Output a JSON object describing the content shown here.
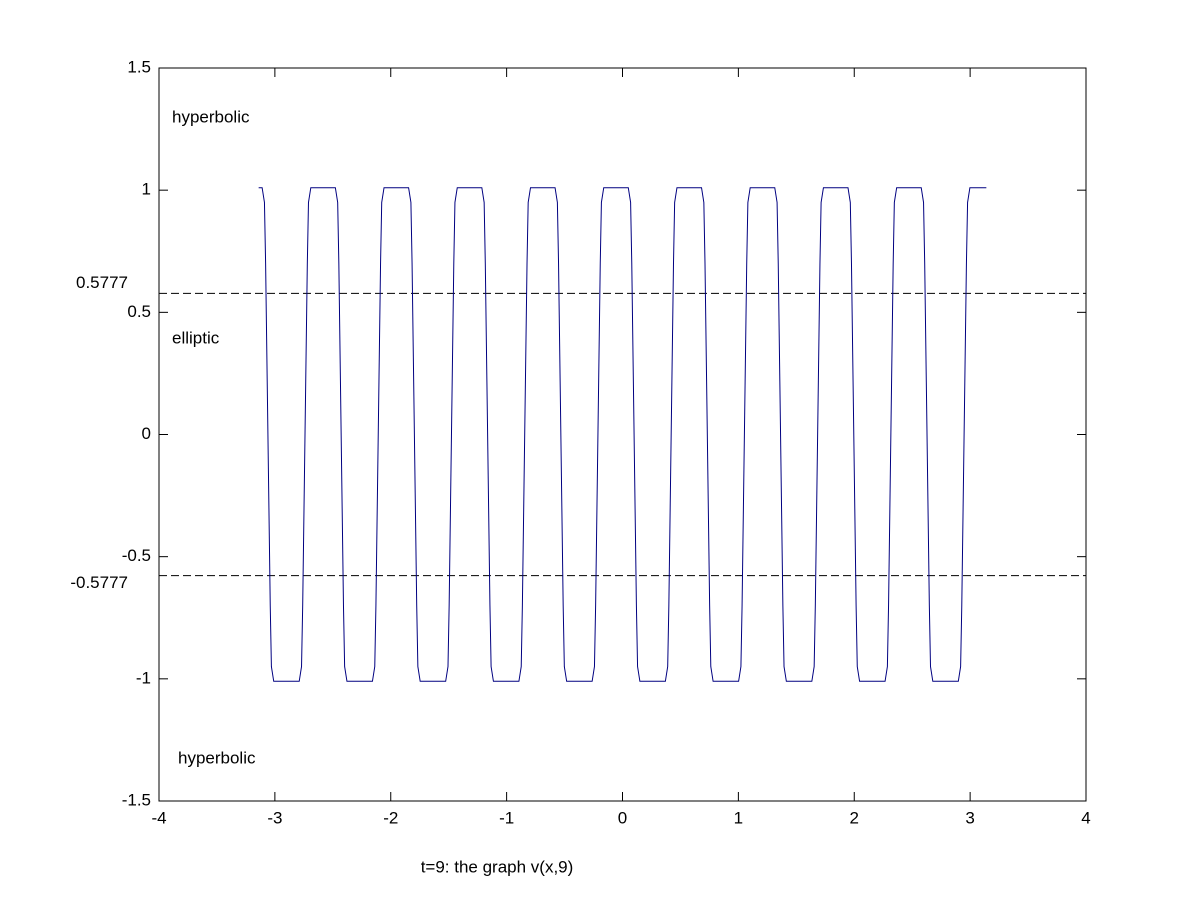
{
  "chart_data": {
    "type": "line",
    "xlabel": "t=9: the graph v(x,9)",
    "x": [
      -3.14,
      -3.11,
      -3.09,
      -3.08,
      -3.04,
      -3.03,
      -3.01,
      -2.79,
      -2.77,
      -2.76,
      -2.72,
      -2.71,
      -2.69,
      -2.478,
      -2.458,
      -2.448,
      -2.408,
      -2.398,
      -2.378,
      -2.158,
      -2.138,
      -2.128,
      -2.088,
      -2.078,
      -2.058,
      -1.846,
      -1.826,
      -1.816,
      -1.776,
      -1.766,
      -1.746,
      -1.526,
      -1.506,
      -1.496,
      -1.456,
      -1.446,
      -1.426,
      -1.214,
      -1.194,
      -1.184,
      -1.144,
      -1.134,
      -1.114,
      -0.894,
      -0.874,
      -0.864,
      -0.824,
      -0.814,
      -0.794,
      -0.582,
      -0.562,
      -0.552,
      -0.512,
      -0.502,
      -0.482,
      -0.262,
      -0.242,
      -0.232,
      -0.192,
      -0.182,
      -0.162,
      0.05,
      0.07,
      0.08,
      0.12,
      0.13,
      0.15,
      0.37,
      0.39,
      0.4,
      0.44,
      0.45,
      0.47,
      0.682,
      0.702,
      0.712,
      0.752,
      0.762,
      0.782,
      1.002,
      1.022,
      1.032,
      1.072,
      1.082,
      1.102,
      1.314,
      1.334,
      1.344,
      1.384,
      1.394,
      1.414,
      1.634,
      1.654,
      1.664,
      1.704,
      1.714,
      1.734,
      1.946,
      1.966,
      1.976,
      2.016,
      2.026,
      2.046,
      2.266,
      2.286,
      2.296,
      2.336,
      2.346,
      2.366,
      2.578,
      2.598,
      2.608,
      2.648,
      2.658,
      2.678,
      2.898,
      2.918,
      2.928,
      2.968,
      2.978,
      2.998,
      3.14
    ],
    "values": [
      1.01,
      1.01,
      0.95,
      0.7,
      -0.7,
      -0.95,
      -1.01,
      -1.01,
      -0.95,
      -0.7,
      0.7,
      0.95,
      1.01,
      1.01,
      0.95,
      0.7,
      -0.7,
      -0.95,
      -1.01,
      -1.01,
      -0.95,
      -0.7,
      0.7,
      0.95,
      1.01,
      1.01,
      0.95,
      0.7,
      -0.7,
      -0.95,
      -1.01,
      -1.01,
      -0.95,
      -0.7,
      0.7,
      0.95,
      1.01,
      1.01,
      0.95,
      0.7,
      -0.7,
      -0.95,
      -1.01,
      -1.01,
      -0.95,
      -0.7,
      0.7,
      0.95,
      1.01,
      1.01,
      0.95,
      0.7,
      -0.7,
      -0.95,
      -1.01,
      -1.01,
      -0.95,
      -0.7,
      0.7,
      0.95,
      1.01,
      1.01,
      0.95,
      0.7,
      -0.7,
      -0.95,
      -1.01,
      -1.01,
      -0.95,
      -0.7,
      0.7,
      0.95,
      1.01,
      1.01,
      0.95,
      0.7,
      -0.7,
      -0.95,
      -1.01,
      -1.01,
      -0.95,
      -0.7,
      0.7,
      0.95,
      1.01,
      1.01,
      0.95,
      0.7,
      -0.7,
      -0.95,
      -1.01,
      -1.01,
      -0.95,
      -0.7,
      0.7,
      0.95,
      1.01,
      1.01,
      0.95,
      0.7,
      -0.7,
      -0.95,
      -1.01,
      -1.01,
      -0.95,
      -0.7,
      0.7,
      0.95,
      1.01,
      1.01,
      0.95,
      0.7,
      -0.7,
      -0.95,
      -1.01,
      -1.01,
      -0.95,
      -0.7,
      0.7,
      0.95,
      1.01,
      1.01
    ],
    "color": "#000080",
    "xlim": [
      -4,
      4
    ],
    "xticks": [
      -4,
      -3,
      -2,
      -1,
      0,
      1,
      2,
      3,
      4
    ],
    "ylim": [
      -1.5,
      1.5
    ],
    "yticks": [
      -1.5,
      -1,
      -0.5,
      0,
      0.5,
      1,
      1.5
    ],
    "hlines": [
      {
        "value": 0.5777,
        "label": "0.5777"
      },
      {
        "value": -0.5777,
        "label": "-0.5777"
      }
    ],
    "hline_color": "#000000",
    "annotations": [
      "hyperbolic",
      "elliptic",
      "hyperbolic"
    ]
  }
}
